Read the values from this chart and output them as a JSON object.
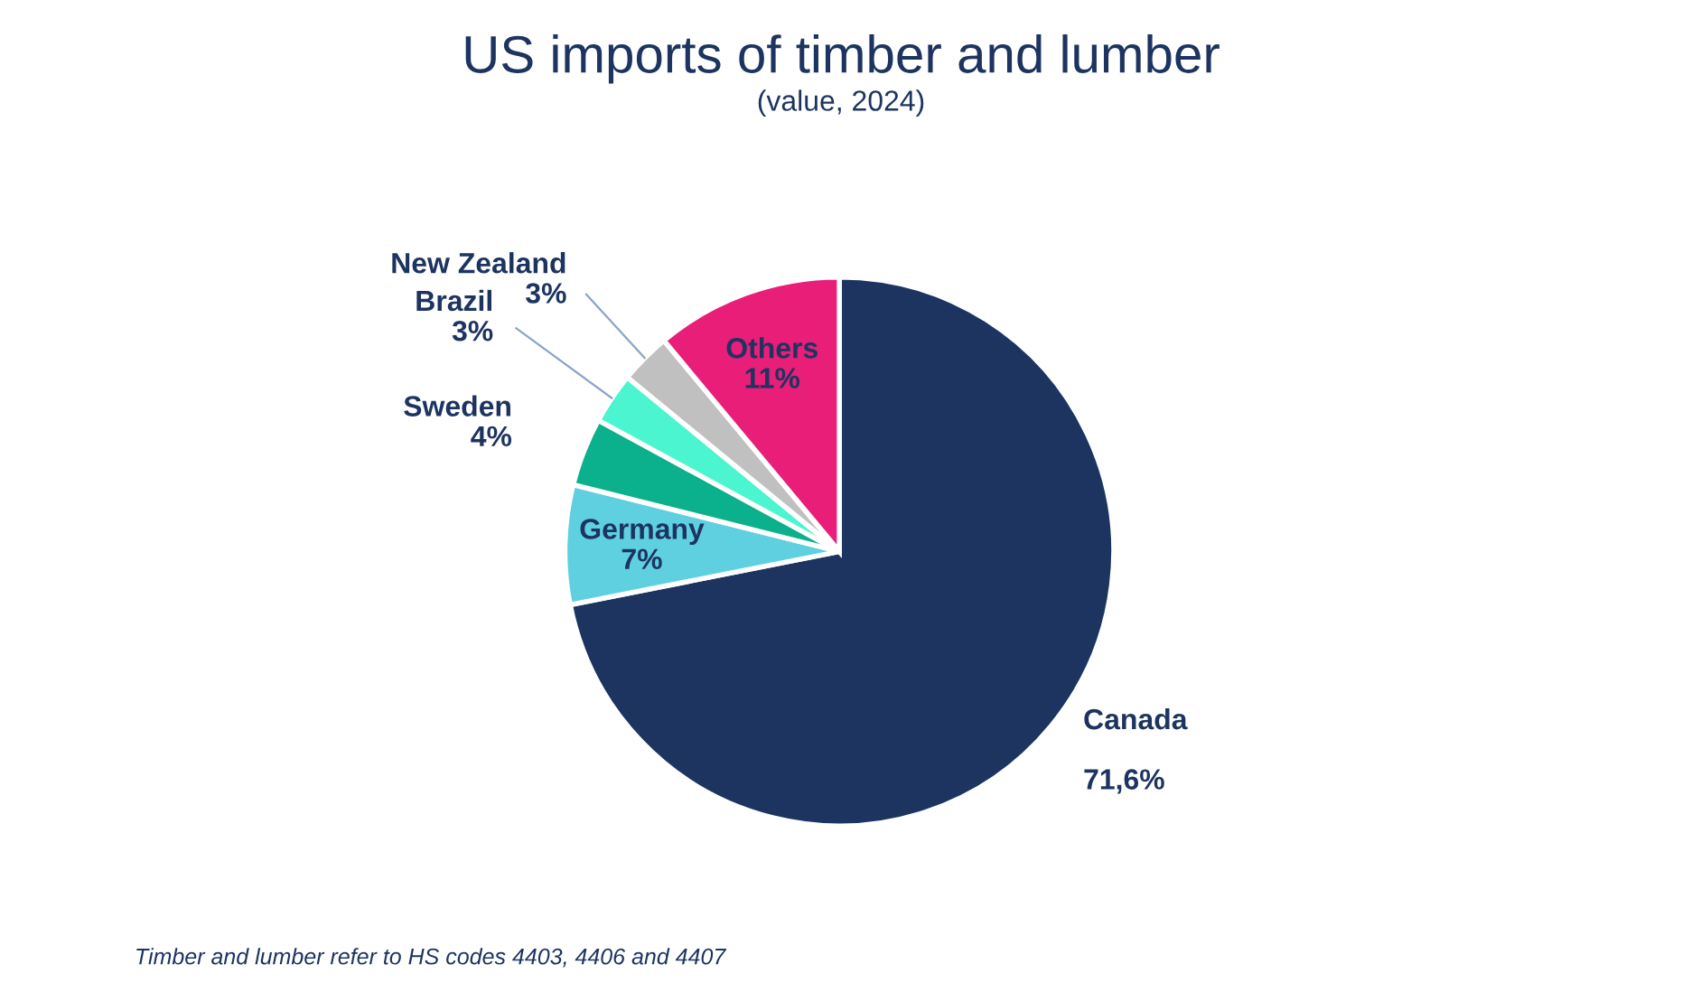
{
  "chart_data": {
    "type": "pie",
    "title": "US imports of timber and lumber",
    "subtitle": "(value, 2024)",
    "categories": [
      "Canada",
      "Germany",
      "Sweden",
      "Brazil",
      "New Zealand",
      "Others"
    ],
    "values": [
      71.6,
      7,
      4,
      3,
      3,
      11
    ],
    "value_labels": [
      "71,6%",
      "7%",
      "4%",
      "3%",
      "3%",
      "11%"
    ],
    "colors": [
      "#1d3461",
      "#5fd0e0",
      "#0bb08c",
      "#4af5d0",
      "#c0c0c0",
      "#e81e78"
    ],
    "annotations": [
      "Timber and lumber refer to HS codes 4403, 4406 and 4407"
    ],
    "legend": false
  }
}
